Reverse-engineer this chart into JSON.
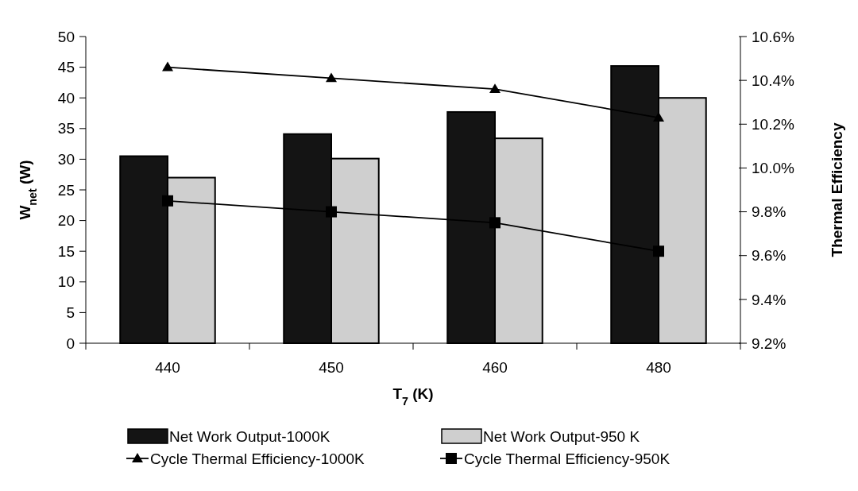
{
  "chart_data": {
    "type": "bar",
    "xlabel": "T$_{7}$ (K)",
    "ylabel": "W$_{net}$ (W)",
    "y2label": "Thermal Efficiency",
    "categories": [
      "440",
      "450",
      "460",
      "480"
    ],
    "series": [
      {
        "name": "Net Work Output-1000K",
        "color": "#141414",
        "values": [
          30.5,
          34.1,
          37.7,
          45.2
        ]
      },
      {
        "name": "Net Work Output-950 K",
        "color": "#cfcfcf",
        "values": [
          27,
          30.1,
          33.4,
          40
        ]
      },
      {
        "name": "Cycle Thermal Efficiency-1000K",
        "type": "line",
        "axis": "y2",
        "color": "#000000",
        "marker": "triangle",
        "values": [
          10.46,
          10.41,
          10.36,
          10.23
        ]
      },
      {
        "name": "Cycle Thermal Efficiency-950K",
        "type": "line",
        "axis": "y2",
        "color": "#000000",
        "marker": "square",
        "values": [
          9.85,
          9.8,
          9.75,
          9.62
        ]
      }
    ],
    "ylim": [
      0,
      50
    ],
    "yticks": [
      0,
      5,
      10,
      15,
      20,
      25,
      30,
      35,
      40,
      45,
      50
    ],
    "y2lim": [
      9.2,
      10.6
    ],
    "y2ticks": [
      {
        "value": 9.2,
        "label": "9.2%"
      },
      {
        "value": 9.4,
        "label": "9.4%"
      },
      {
        "value": 9.6,
        "label": "9.6%"
      },
      {
        "value": 9.8,
        "label": "9.8%"
      },
      {
        "value": 10,
        "label": "10.0%"
      },
      {
        "value": 10.2,
        "label": "10.2%"
      },
      {
        "value": 10.4,
        "label": "10.4%"
      },
      {
        "value": 10.6,
        "label": "10.6%"
      }
    ],
    "grid": false,
    "legend": "bottom"
  }
}
